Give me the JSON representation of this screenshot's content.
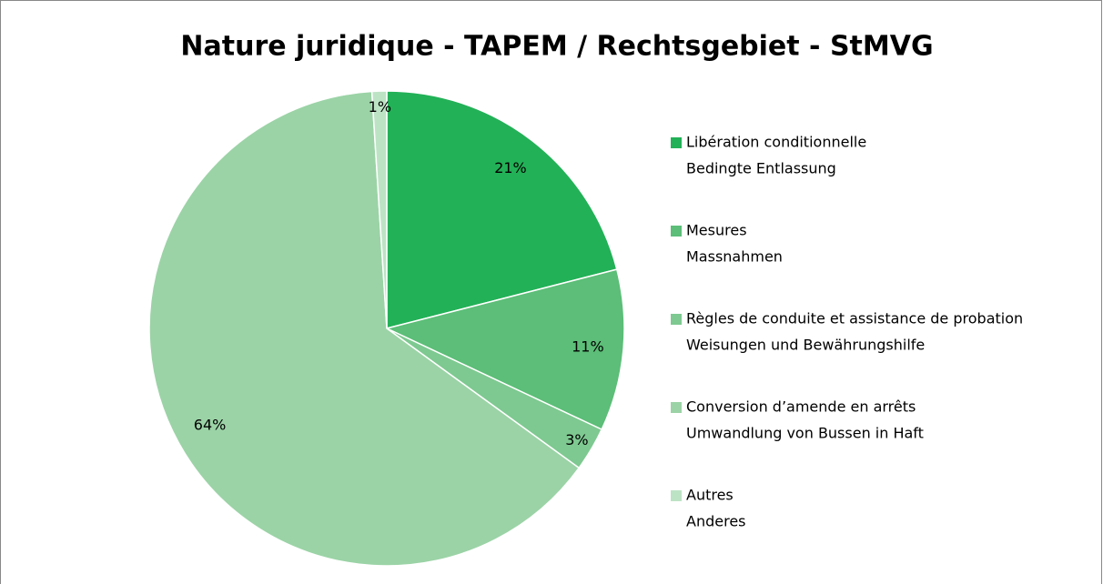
{
  "chart_data": {
    "type": "pie",
    "title": "Nature juridique - TAPEM / Rechtsgebiet - StMVG",
    "categories": [
      [
        "Libération conditionnelle",
        "Bedingte Entlassung"
      ],
      [
        "Mesures",
        "Massnahmen"
      ],
      [
        "Règles de conduite et assistance de probation",
        "Weisungen und Bewährungshilfe"
      ],
      [
        "Conversion d’amende en arrêts",
        "Umwandlung von Bussen in Haft"
      ],
      [
        "Autres",
        "Anderes"
      ]
    ],
    "values": [
      21,
      11,
      3,
      64,
      1
    ],
    "value_labels": [
      "21%",
      "11%",
      "3%",
      "64%",
      "1%"
    ],
    "colors": [
      "#22b157",
      "#5cbe78",
      "#7ec991",
      "#9bd3a6",
      "#bde3c5"
    ],
    "legend": "right"
  }
}
